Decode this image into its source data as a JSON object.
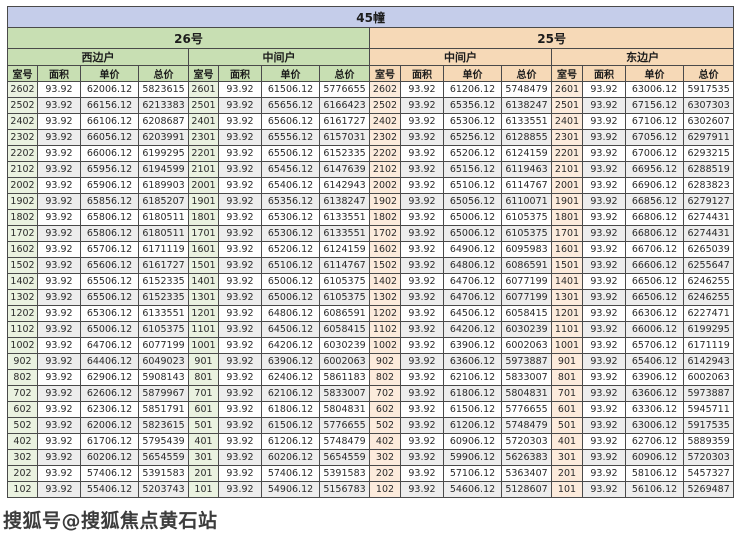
{
  "title": "45幢",
  "watermark": "搜狐号@搜狐焦点黄石站",
  "columns": [
    "室号",
    "面积",
    "单价",
    "总价"
  ],
  "colors": {
    "title_bg": "#c5cdea",
    "green_header": "#c8dfb3",
    "green_tint": "#eaf2e0",
    "peach_header": "#f6d9b7",
    "peach_tint": "#fcebdc",
    "stripe": "#ededed",
    "border": "#4a4a4a"
  },
  "buildings": [
    {
      "name": "26号",
      "theme": "green",
      "units": [
        {
          "name": "西边户",
          "rows": [
            [
              "2602",
              "93.92",
              "62006.12",
              "5823615"
            ],
            [
              "2502",
              "93.92",
              "66156.12",
              "6213383"
            ],
            [
              "2402",
              "93.92",
              "66106.12",
              "6208687"
            ],
            [
              "2302",
              "93.92",
              "66056.12",
              "6203991"
            ],
            [
              "2202",
              "93.92",
              "66006.12",
              "6199295"
            ],
            [
              "2102",
              "93.92",
              "65956.12",
              "6194599"
            ],
            [
              "2002",
              "93.92",
              "65906.12",
              "6189903"
            ],
            [
              "1902",
              "93.92",
              "65856.12",
              "6185207"
            ],
            [
              "1802",
              "93.92",
              "65806.12",
              "6180511"
            ],
            [
              "1702",
              "93.92",
              "65806.12",
              "6180511"
            ],
            [
              "1602",
              "93.92",
              "65706.12",
              "6171119"
            ],
            [
              "1502",
              "93.92",
              "65606.12",
              "6161727"
            ],
            [
              "1402",
              "93.92",
              "65506.12",
              "6152335"
            ],
            [
              "1302",
              "93.92",
              "65506.12",
              "6152335"
            ],
            [
              "1202",
              "93.92",
              "65306.12",
              "6133551"
            ],
            [
              "1102",
              "93.92",
              "65006.12",
              "6105375"
            ],
            [
              "1002",
              "93.92",
              "64706.12",
              "6077199"
            ],
            [
              "902",
              "93.92",
              "64406.12",
              "6049023"
            ],
            [
              "802",
              "93.92",
              "62906.12",
              "5908143"
            ],
            [
              "702",
              "93.92",
              "62606.12",
              "5879967"
            ],
            [
              "602",
              "93.92",
              "62306.12",
              "5851791"
            ],
            [
              "502",
              "93.92",
              "62006.12",
              "5823615"
            ],
            [
              "402",
              "93.92",
              "61706.12",
              "5795439"
            ],
            [
              "302",
              "93.92",
              "60206.12",
              "5654559"
            ],
            [
              "202",
              "93.92",
              "57406.12",
              "5391583"
            ],
            [
              "102",
              "93.92",
              "55406.12",
              "5203743"
            ]
          ]
        },
        {
          "name": "中间户",
          "rows": [
            [
              "2601",
              "93.92",
              "61506.12",
              "5776655"
            ],
            [
              "2501",
              "93.92",
              "65656.12",
              "6166423"
            ],
            [
              "2401",
              "93.92",
              "65606.12",
              "6161727"
            ],
            [
              "2301",
              "93.92",
              "65556.12",
              "6157031"
            ],
            [
              "2201",
              "93.92",
              "65506.12",
              "6152335"
            ],
            [
              "2101",
              "93.92",
              "65456.12",
              "6147639"
            ],
            [
              "2001",
              "93.92",
              "65406.12",
              "6142943"
            ],
            [
              "1901",
              "93.92",
              "65356.12",
              "6138247"
            ],
            [
              "1801",
              "93.92",
              "65306.12",
              "6133551"
            ],
            [
              "1701",
              "93.92",
              "65306.12",
              "6133551"
            ],
            [
              "1601",
              "93.92",
              "65206.12",
              "6124159"
            ],
            [
              "1501",
              "93.92",
              "65106.12",
              "6114767"
            ],
            [
              "1401",
              "93.92",
              "65006.12",
              "6105375"
            ],
            [
              "1301",
              "93.92",
              "65006.12",
              "6105375"
            ],
            [
              "1201",
              "93.92",
              "64806.12",
              "6086591"
            ],
            [
              "1101",
              "93.92",
              "64506.12",
              "6058415"
            ],
            [
              "1001",
              "93.92",
              "64206.12",
              "6030239"
            ],
            [
              "901",
              "93.92",
              "63906.12",
              "6002063"
            ],
            [
              "801",
              "93.92",
              "62406.12",
              "5861183"
            ],
            [
              "701",
              "93.92",
              "62106.12",
              "5833007"
            ],
            [
              "601",
              "93.92",
              "61806.12",
              "5804831"
            ],
            [
              "501",
              "93.92",
              "61506.12",
              "5776655"
            ],
            [
              "401",
              "93.92",
              "61206.12",
              "5748479"
            ],
            [
              "301",
              "93.92",
              "60206.12",
              "5654559"
            ],
            [
              "201",
              "93.92",
              "57406.12",
              "5391583"
            ],
            [
              "101",
              "93.92",
              "54906.12",
              "5156783"
            ]
          ]
        }
      ]
    },
    {
      "name": "25号",
      "theme": "peach",
      "units": [
        {
          "name": "中间户",
          "rows": [
            [
              "2602",
              "93.92",
              "61206.12",
              "5748479"
            ],
            [
              "2502",
              "93.92",
              "65356.12",
              "6138247"
            ],
            [
              "2402",
              "93.92",
              "65306.12",
              "6133551"
            ],
            [
              "2302",
              "93.92",
              "65256.12",
              "6128855"
            ],
            [
              "2202",
              "93.92",
              "65206.12",
              "6124159"
            ],
            [
              "2102",
              "93.92",
              "65156.12",
              "6119463"
            ],
            [
              "2002",
              "93.92",
              "65106.12",
              "6114767"
            ],
            [
              "1902",
              "93.92",
              "65056.12",
              "6110071"
            ],
            [
              "1802",
              "93.92",
              "65006.12",
              "6105375"
            ],
            [
              "1702",
              "93.92",
              "65006.12",
              "6105375"
            ],
            [
              "1602",
              "93.92",
              "64906.12",
              "6095983"
            ],
            [
              "1502",
              "93.92",
              "64806.12",
              "6086591"
            ],
            [
              "1402",
              "93.92",
              "64706.12",
              "6077199"
            ],
            [
              "1302",
              "93.92",
              "64706.12",
              "6077199"
            ],
            [
              "1202",
              "93.92",
              "64506.12",
              "6058415"
            ],
            [
              "1102",
              "93.92",
              "64206.12",
              "6030239"
            ],
            [
              "1002",
              "93.92",
              "63906.12",
              "6002063"
            ],
            [
              "902",
              "93.92",
              "63606.12",
              "5973887"
            ],
            [
              "802",
              "93.92",
              "62106.12",
              "5833007"
            ],
            [
              "702",
              "93.92",
              "61806.12",
              "5804831"
            ],
            [
              "602",
              "93.92",
              "61506.12",
              "5776655"
            ],
            [
              "502",
              "93.92",
              "61206.12",
              "5748479"
            ],
            [
              "402",
              "93.92",
              "60906.12",
              "5720303"
            ],
            [
              "302",
              "93.92",
              "59906.12",
              "5626383"
            ],
            [
              "202",
              "93.92",
              "57106.12",
              "5363407"
            ],
            [
              "102",
              "93.92",
              "54606.12",
              "5128607"
            ]
          ]
        },
        {
          "name": "东边户",
          "rows": [
            [
              "2601",
              "93.92",
              "63006.12",
              "5917535"
            ],
            [
              "2501",
              "93.92",
              "67156.12",
              "6307303"
            ],
            [
              "2401",
              "93.92",
              "67106.12",
              "6302607"
            ],
            [
              "2301",
              "93.92",
              "67056.12",
              "6297911"
            ],
            [
              "2201",
              "93.92",
              "67006.12",
              "6293215"
            ],
            [
              "2101",
              "93.92",
              "66956.12",
              "6288519"
            ],
            [
              "2001",
              "93.92",
              "66906.12",
              "6283823"
            ],
            [
              "1901",
              "93.92",
              "66856.12",
              "6279127"
            ],
            [
              "1801",
              "93.92",
              "66806.12",
              "6274431"
            ],
            [
              "1701",
              "93.92",
              "66806.12",
              "6274431"
            ],
            [
              "1601",
              "93.92",
              "66706.12",
              "6265039"
            ],
            [
              "1501",
              "93.92",
              "66606.12",
              "6255647"
            ],
            [
              "1401",
              "93.92",
              "66506.12",
              "6246255"
            ],
            [
              "1301",
              "93.92",
              "66506.12",
              "6246255"
            ],
            [
              "1201",
              "93.92",
              "66306.12",
              "6227471"
            ],
            [
              "1101",
              "93.92",
              "66006.12",
              "6199295"
            ],
            [
              "1001",
              "93.92",
              "65706.12",
              "6171119"
            ],
            [
              "901",
              "93.92",
              "65406.12",
              "6142943"
            ],
            [
              "801",
              "93.92",
              "63906.12",
              "6002063"
            ],
            [
              "701",
              "93.92",
              "63606.12",
              "5973887"
            ],
            [
              "601",
              "93.92",
              "63306.12",
              "5945711"
            ],
            [
              "501",
              "93.92",
              "63006.12",
              "5917535"
            ],
            [
              "401",
              "93.92",
              "62706.12",
              "5889359"
            ],
            [
              "301",
              "93.92",
              "60906.12",
              "5720303"
            ],
            [
              "201",
              "93.92",
              "58106.12",
              "5457327"
            ],
            [
              "101",
              "93.92",
              "56106.12",
              "5269487"
            ]
          ]
        }
      ]
    }
  ]
}
